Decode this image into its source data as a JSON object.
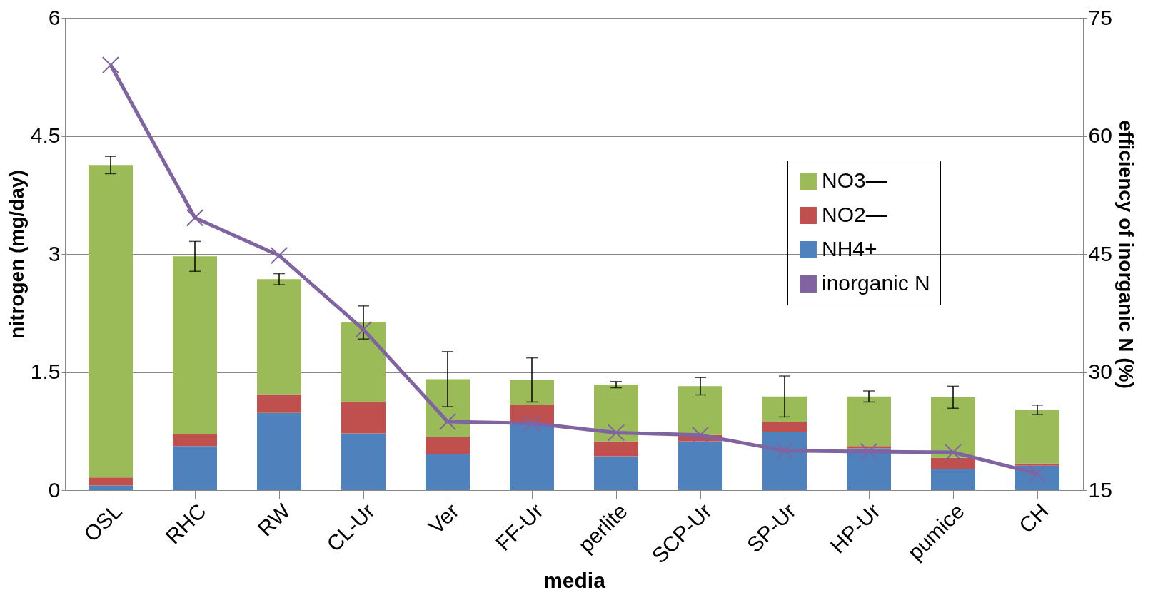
{
  "chart_data": {
    "type": "bar",
    "stacked": true,
    "categories": [
      "OSL",
      "RHC",
      "RW",
      "CL-Ur",
      "Ver",
      "FF-Ur",
      "perlite",
      "SCP-Ur",
      "SP-Ur",
      "HP-Ur",
      "pumice",
      "CH"
    ],
    "xlabel": "media",
    "ylabel": "nitrogen (mg/day)",
    "y2label": "efficiency of inorganic N  (%)",
    "ylim": [
      0,
      6
    ],
    "yticks": [
      0,
      1.5,
      3,
      4.5,
      6
    ],
    "y2lim": [
      15,
      75
    ],
    "y2ticks": [
      15,
      30,
      45,
      60,
      75
    ],
    "grid": "y",
    "legend": "top right",
    "series": [
      {
        "name": "NH4+",
        "color": "#4f81bd",
        "values": [
          0.06,
          0.56,
          0.98,
          0.72,
          0.46,
          0.84,
          0.43,
          0.62,
          0.74,
          0.53,
          0.27,
          0.31
        ]
      },
      {
        "name": "NO2—",
        "color": "#c0504d",
        "values": [
          0.1,
          0.15,
          0.24,
          0.4,
          0.22,
          0.24,
          0.19,
          0.08,
          0.13,
          0.03,
          0.14,
          0.03
        ]
      },
      {
        "name": "NO3—",
        "color": "#9bbb59",
        "values": [
          3.97,
          2.26,
          1.46,
          1.01,
          0.73,
          0.32,
          0.72,
          0.62,
          0.32,
          0.63,
          0.77,
          0.68
        ],
        "errors": [
          0.11,
          0.19,
          0.07,
          0.21,
          0.35,
          0.28,
          0.04,
          0.11,
          0.26,
          0.07,
          0.14,
          0.06
        ]
      },
      {
        "name": "inorganic N",
        "type": "line",
        "axis": "y2",
        "color": "#8064a2",
        "marker": "cross",
        "values": [
          69,
          49.6,
          44.8,
          35.4,
          23.7,
          23.5,
          22.3,
          22.0,
          20.0,
          19.9,
          19.8,
          17.1
        ]
      }
    ]
  }
}
